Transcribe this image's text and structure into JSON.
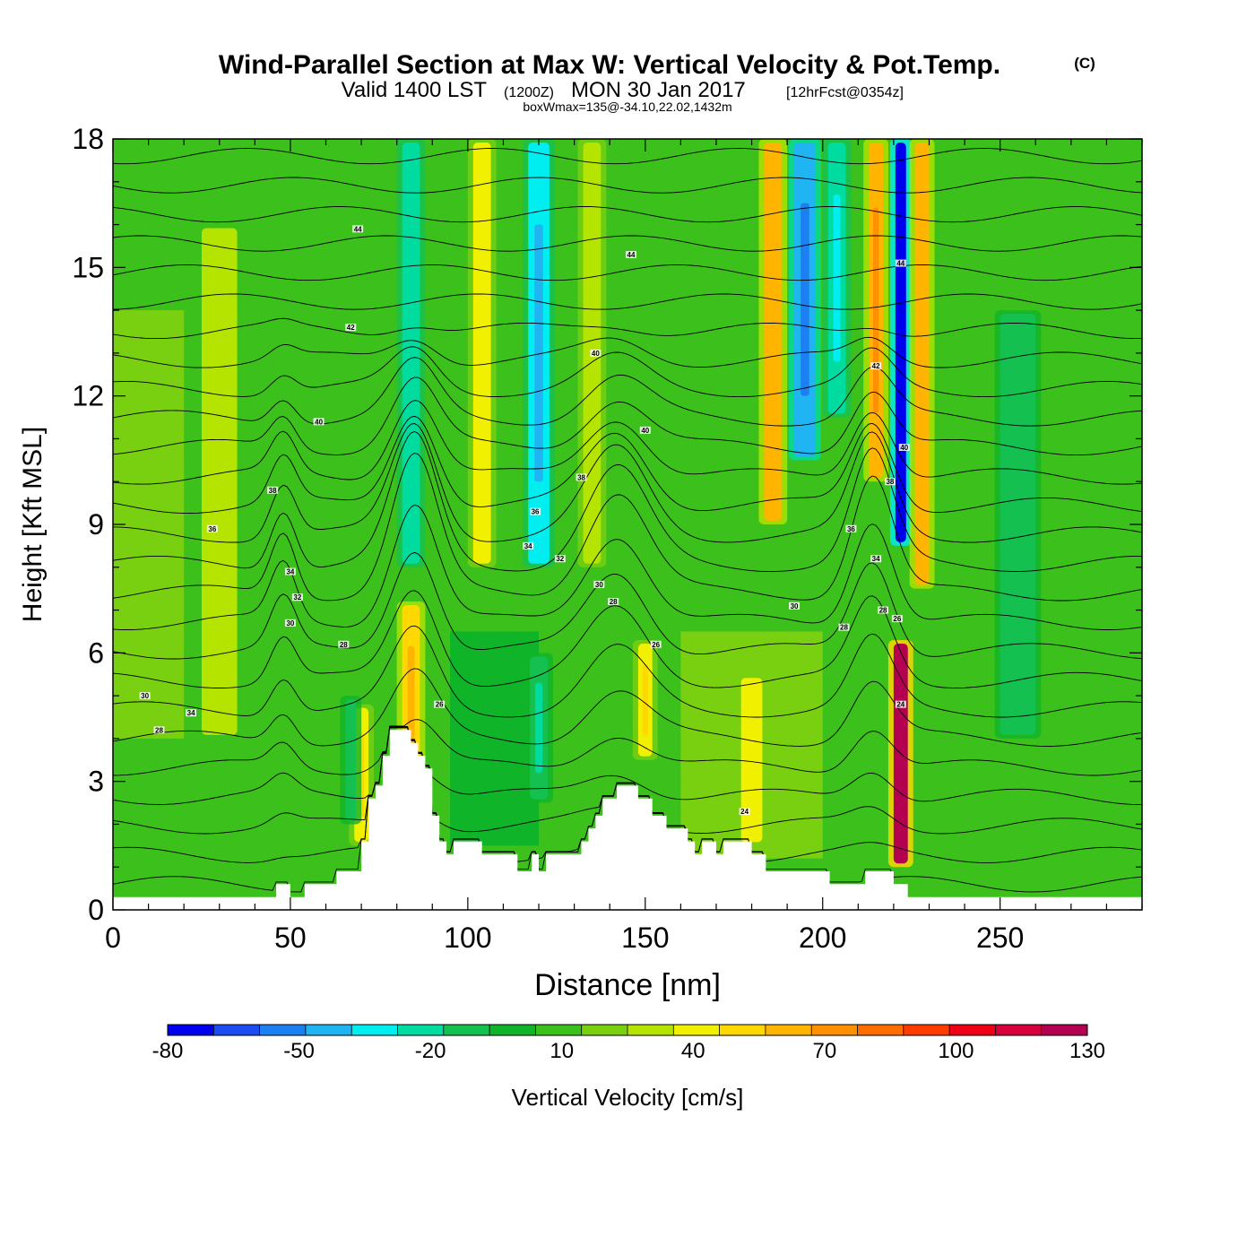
{
  "chart_data": {
    "type": "heatmap",
    "title": "Wind-Parallel Section at Max W: Vertical Velocity & Pot.Temp.",
    "title_mark": "(C)",
    "subtitle": {
      "valid_prefix": "Valid 1400 LST",
      "utc": "(1200Z)",
      "date": "MON 30 Jan 2017",
      "forecast": "[12hrFcst@0354z]"
    },
    "info_line": "boxWmax=135@-34.10,22.02,1432m",
    "xlabel": "Distance [nm]",
    "ylabel": "Height [Kft MSL]",
    "xlim": [
      0,
      290
    ],
    "ylim": [
      0,
      18
    ],
    "x_ticks": [
      0,
      50,
      100,
      150,
      200,
      250
    ],
    "y_ticks": [
      0,
      3,
      6,
      9,
      12,
      15,
      18
    ],
    "colorbar": {
      "label": "Vertical Velocity [cm/s]",
      "min": -80,
      "max": 130,
      "step": 10,
      "tick_labels": [
        "-80",
        "-50",
        "-20",
        "10",
        "40",
        "70",
        "100",
        "130"
      ],
      "tick_values": [
        -80,
        -50,
        -20,
        10,
        40,
        70,
        100,
        130
      ],
      "colors": [
        "#0000ee",
        "#1a4cf2",
        "#1c80f2",
        "#20b4f2",
        "#00eef0",
        "#00dca0",
        "#14c050",
        "#10b428",
        "#3cc01c",
        "#78d010",
        "#b4e400",
        "#f0f000",
        "#ffd800",
        "#ffb400",
        "#ff9000",
        "#ff6c00",
        "#ff3c00",
        "#f00014",
        "#d8003c",
        "#b40050"
      ]
    },
    "velocity_bands": [
      {
        "x": 84,
        "w": 5,
        "y0": 2.0,
        "y1": 7.2,
        "value": 45
      },
      {
        "x": 70,
        "w": 4,
        "y0": 1.5,
        "y1": 4.8,
        "value": 35
      },
      {
        "x": 67,
        "w": 3,
        "y0": 2.0,
        "y1": 5.0,
        "value": -15
      },
      {
        "x": 84,
        "w": 5,
        "y0": 8.0,
        "y1": 18,
        "value": -25
      },
      {
        "x": 104,
        "w": 5,
        "y0": 8.0,
        "y1": 18,
        "value": 30
      },
      {
        "x": 120,
        "w": 6,
        "y0": 8.0,
        "y1": 18,
        "value": -35
      },
      {
        "x": 135,
        "w": 5,
        "y0": 8.0,
        "y1": 18,
        "value": 25
      },
      {
        "x": 150,
        "w": 4,
        "y0": 3.5,
        "y1": 6.3,
        "value": 38
      },
      {
        "x": 120,
        "w": 5,
        "y0": 2.5,
        "y1": 6.0,
        "value": -20
      },
      {
        "x": 186,
        "w": 5,
        "y0": 9.0,
        "y1": 18,
        "value": 52
      },
      {
        "x": 195,
        "w": 6,
        "y0": 10.5,
        "y1": 18,
        "value": -45
      },
      {
        "x": 204,
        "w": 5,
        "y0": 11.5,
        "y1": 18,
        "value": -30
      },
      {
        "x": 215,
        "w": 4,
        "y0": 10.0,
        "y1": 18,
        "value": 55
      },
      {
        "x": 222,
        "w": 3,
        "y0": 8.5,
        "y1": 18,
        "value": -75
      },
      {
        "x": 228,
        "w": 4,
        "y0": 7.5,
        "y1": 18,
        "value": 50
      },
      {
        "x": 222,
        "w": 4,
        "y0": 1.0,
        "y1": 6.3,
        "value": 110
      },
      {
        "x": 180,
        "w": 6,
        "y0": 1.5,
        "y1": 5.5,
        "value": 30
      },
      {
        "x": 255,
        "w": 10,
        "y0": 4.0,
        "y1": 14.0,
        "value": -12
      },
      {
        "x": 30,
        "w": 10,
        "y0": 4.0,
        "y1": 16.0,
        "value": 22
      }
    ],
    "terrain": [
      [
        0,
        0.3
      ],
      [
        46,
        0.3
      ],
      [
        46,
        0.6
      ],
      [
        50,
        0.6
      ],
      [
        50,
        0.3
      ],
      [
        54,
        0.3
      ],
      [
        54,
        0.6
      ],
      [
        63,
        0.6
      ],
      [
        63,
        0.9
      ],
      [
        70,
        0.9
      ],
      [
        70,
        1.6
      ],
      [
        72,
        1.6
      ],
      [
        72,
        2.6
      ],
      [
        74,
        2.6
      ],
      [
        74,
        2.9
      ],
      [
        76,
        2.9
      ],
      [
        76,
        3.6
      ],
      [
        78,
        3.6
      ],
      [
        78,
        4.2
      ],
      [
        84,
        4.2
      ],
      [
        84,
        3.9
      ],
      [
        86,
        3.9
      ],
      [
        86,
        3.6
      ],
      [
        88,
        3.6
      ],
      [
        88,
        3.3
      ],
      [
        90,
        3.3
      ],
      [
        90,
        2.2
      ],
      [
        92,
        2.2
      ],
      [
        92,
        1.6
      ],
      [
        94,
        1.6
      ],
      [
        94,
        1.3
      ],
      [
        96,
        1.3
      ],
      [
        96,
        1.6
      ],
      [
        104,
        1.6
      ],
      [
        104,
        1.3
      ],
      [
        114,
        1.3
      ],
      [
        114,
        0.9
      ],
      [
        118,
        0.9
      ],
      [
        118,
        1.3
      ],
      [
        120,
        1.3
      ],
      [
        120,
        0.9
      ],
      [
        122,
        0.9
      ],
      [
        122,
        1.3
      ],
      [
        132,
        1.3
      ],
      [
        132,
        1.6
      ],
      [
        134,
        1.6
      ],
      [
        134,
        1.9
      ],
      [
        136,
        1.9
      ],
      [
        136,
        2.2
      ],
      [
        138,
        2.2
      ],
      [
        138,
        2.6
      ],
      [
        142,
        2.6
      ],
      [
        142,
        2.9
      ],
      [
        148,
        2.9
      ],
      [
        148,
        2.6
      ],
      [
        152,
        2.6
      ],
      [
        152,
        2.2
      ],
      [
        156,
        2.2
      ],
      [
        156,
        1.9
      ],
      [
        162,
        1.9
      ],
      [
        162,
        1.6
      ],
      [
        164,
        1.6
      ],
      [
        164,
        1.3
      ],
      [
        166,
        1.3
      ],
      [
        166,
        1.6
      ],
      [
        170,
        1.6
      ],
      [
        170,
        1.3
      ],
      [
        172,
        1.3
      ],
      [
        172,
        1.6
      ],
      [
        180,
        1.6
      ],
      [
        180,
        1.3
      ],
      [
        184,
        1.3
      ],
      [
        184,
        0.9
      ],
      [
        202,
        0.9
      ],
      [
        202,
        0.6
      ],
      [
        212,
        0.6
      ],
      [
        212,
        0.9
      ],
      [
        220,
        0.9
      ],
      [
        220,
        0.6
      ],
      [
        224,
        0.6
      ],
      [
        224,
        0.3
      ],
      [
        290,
        0.3
      ]
    ],
    "theta_contours": {
      "base_level": 28,
      "interval": 1,
      "count": 26,
      "y_start": 0.6,
      "y_end": 17.6
    },
    "contour_labels": [
      {
        "text": "44",
        "x": 69,
        "y": 15.9
      },
      {
        "text": "44",
        "x": 146,
        "y": 15.3
      },
      {
        "text": "44",
        "x": 222,
        "y": 15.1
      },
      {
        "text": "42",
        "x": 67,
        "y": 13.6
      },
      {
        "text": "40",
        "x": 136,
        "y": 13.0
      },
      {
        "text": "42",
        "x": 215,
        "y": 12.7
      },
      {
        "text": "40",
        "x": 58,
        "y": 11.4
      },
      {
        "text": "40",
        "x": 150,
        "y": 11.2
      },
      {
        "text": "40",
        "x": 223,
        "y": 10.8
      },
      {
        "text": "38",
        "x": 45,
        "y": 9.8
      },
      {
        "text": "38",
        "x": 132,
        "y": 10.1
      },
      {
        "text": "38",
        "x": 219,
        "y": 10.0
      },
      {
        "text": "36",
        "x": 28,
        "y": 8.9
      },
      {
        "text": "36",
        "x": 119,
        "y": 9.3
      },
      {
        "text": "36",
        "x": 208,
        "y": 8.9
      },
      {
        "text": "34",
        "x": 117,
        "y": 8.5
      },
      {
        "text": "34",
        "x": 50,
        "y": 7.9
      },
      {
        "text": "32",
        "x": 126,
        "y": 8.2
      },
      {
        "text": "34",
        "x": 215,
        "y": 8.2
      },
      {
        "text": "32",
        "x": 52,
        "y": 7.3
      },
      {
        "text": "30",
        "x": 137,
        "y": 7.6
      },
      {
        "text": "28",
        "x": 141,
        "y": 7.2
      },
      {
        "text": "30",
        "x": 192,
        "y": 7.1
      },
      {
        "text": "28",
        "x": 217,
        "y": 7.0
      },
      {
        "text": "30",
        "x": 50,
        "y": 6.7
      },
      {
        "text": "28",
        "x": 65,
        "y": 6.2
      },
      {
        "text": "26",
        "x": 153,
        "y": 6.2
      },
      {
        "text": "28",
        "x": 206,
        "y": 6.6
      },
      {
        "text": "26",
        "x": 221,
        "y": 6.8
      },
      {
        "text": "30",
        "x": 9,
        "y": 5.0
      },
      {
        "text": "34",
        "x": 22,
        "y": 4.6
      },
      {
        "text": "28",
        "x": 13,
        "y": 4.2
      },
      {
        "text": "26",
        "x": 92,
        "y": 4.8
      },
      {
        "text": "24",
        "x": 222,
        "y": 4.8
      },
      {
        "text": "24",
        "x": 178,
        "y": 2.3
      }
    ],
    "grid": false,
    "legend": "bottom-center colorbar"
  }
}
